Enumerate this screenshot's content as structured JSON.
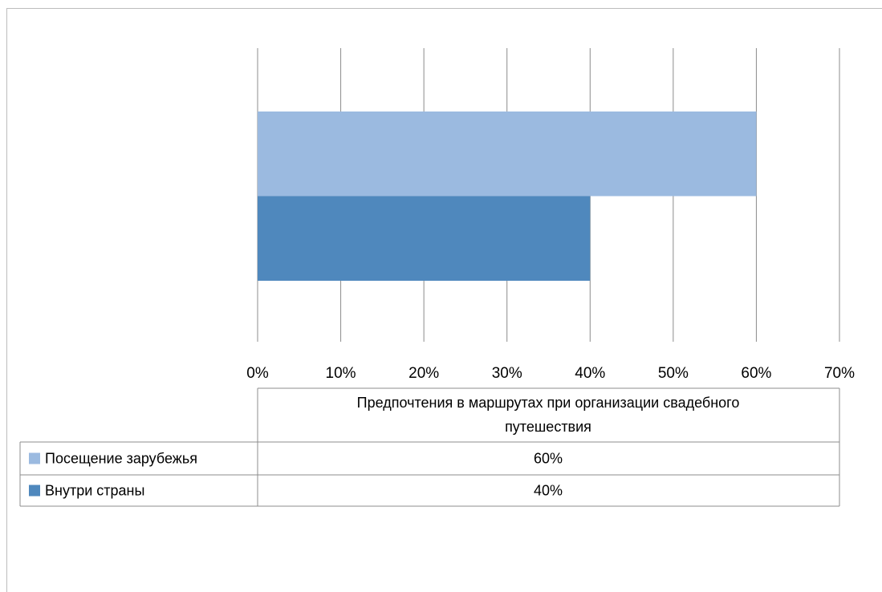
{
  "chart_data": {
    "type": "bar",
    "orientation": "horizontal",
    "categories": [
      "Предпочтения в маршрутах при организации свадебного путешествия"
    ],
    "category_label_lines": [
      "Предпочтения в маршрутах при организации свадебного",
      "путешествия"
    ],
    "series": [
      {
        "name": "Посещение зарубежья",
        "values": [
          0.6
        ],
        "value_label": "60%",
        "color": "#9bbae0"
      },
      {
        "name": "Внутри страны",
        "values": [
          0.4
        ],
        "value_label": "40%",
        "color": "#4f88bd"
      }
    ],
    "xlim": [
      0,
      0.7
    ],
    "x_ticks": [
      0,
      0.1,
      0.2,
      0.3,
      0.4,
      0.5,
      0.6,
      0.7
    ],
    "x_tick_labels": [
      "0%",
      "10%",
      "20%",
      "30%",
      "40%",
      "50%",
      "60%",
      "70%"
    ],
    "grid": true,
    "legend": "data-table"
  }
}
